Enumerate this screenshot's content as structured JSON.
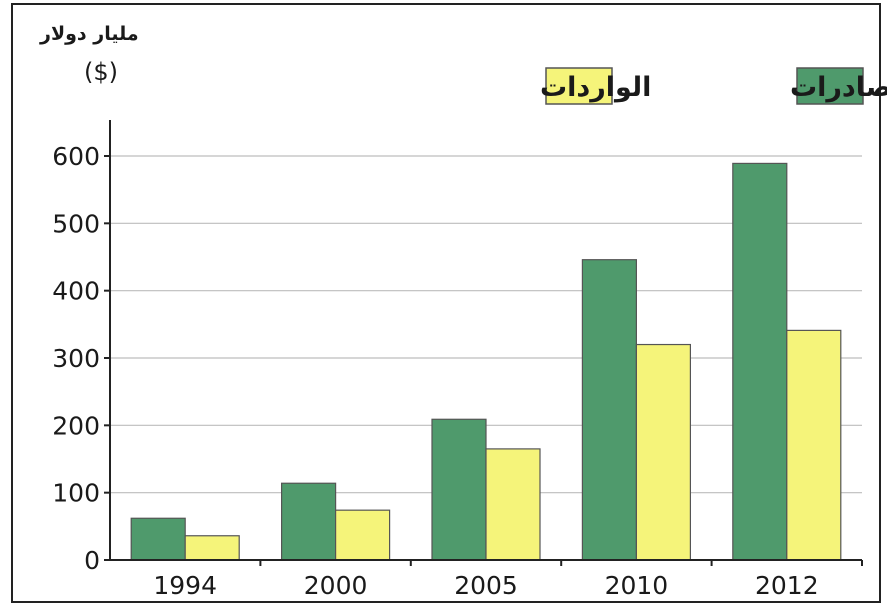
{
  "colors": {
    "exports": "#4f9a6c",
    "imports": "#f5f47a",
    "grid": "#bdbdbd",
    "frame": "#222222"
  },
  "chart_data": {
    "type": "bar",
    "categories": [
      "1994",
      "2000",
      "2005",
      "2010",
      "2012"
    ],
    "series": [
      {
        "name": "الصادرات",
        "values": [
          62,
          114,
          209,
          446,
          589
        ]
      },
      {
        "name": "الواردات",
        "values": [
          36,
          74,
          165,
          320,
          341
        ]
      }
    ],
    "ylabel_line1": "مليار دولار",
    "ylabel_line2": "($)",
    "yticks": [
      "0",
      "100",
      "200",
      "300",
      "400",
      "500",
      "600"
    ],
    "ylim": [
      0,
      660
    ],
    "grid": true,
    "legend_position": "top-right"
  }
}
